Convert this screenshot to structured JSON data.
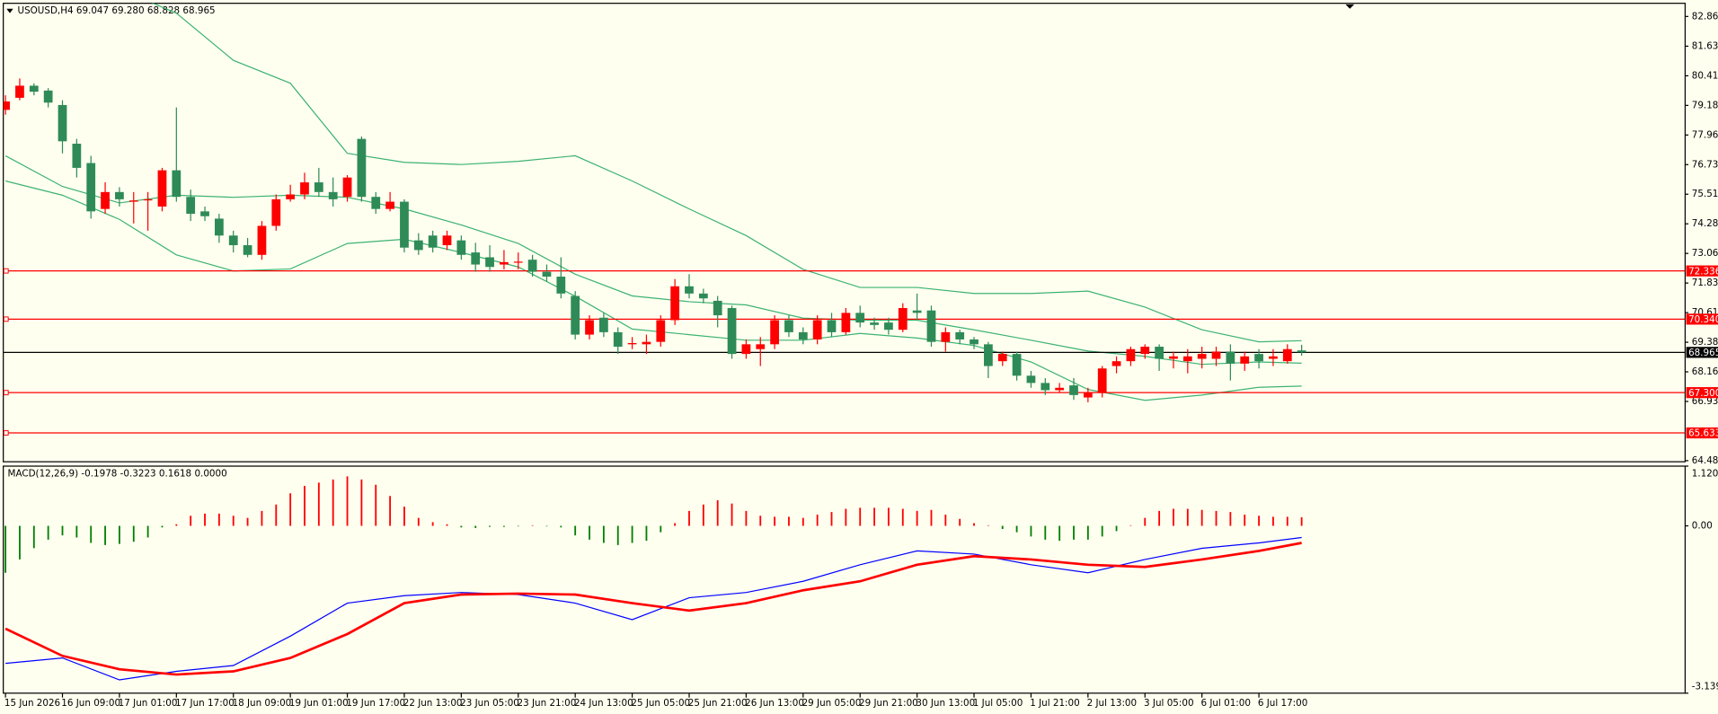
{
  "chart_data": [
    {
      "type": "candlestick",
      "title": "USOUSD,H4  69.047 69.280 68.828 68.965",
      "up_color": "#ff0000",
      "down_color": "#2e8b57",
      "open": [
        79.0,
        79.5,
        80.0,
        79.8,
        79.2,
        77.6,
        76.8,
        74.9,
        75.6,
        75.2,
        75.3,
        75.0,
        76.5,
        75.4,
        74.8,
        74.5,
        73.8,
        73.4,
        73.0,
        74.2,
        75.3,
        75.5,
        76.0,
        75.6,
        75.4,
        77.8,
        75.4,
        74.9,
        75.2,
        73.6,
        73.8,
        73.4,
        73.6,
        73.1,
        72.9,
        72.6,
        72.7,
        72.8,
        72.3,
        72.1,
        71.3,
        69.7,
        70.4,
        69.8,
        69.3,
        69.3,
        69.4,
        70.3,
        71.7,
        71.4,
        71.1,
        70.8,
        68.9,
        69.1,
        69.3,
        70.3,
        69.8,
        69.5,
        70.3,
        69.8,
        70.6,
        70.2,
        70.2,
        69.9,
        70.7,
        70.7,
        69.4,
        69.8,
        69.5,
        69.3,
        68.6,
        68.9,
        68.0,
        67.7,
        67.4,
        67.6,
        67.1,
        67.3,
        68.4,
        68.6,
        68.9,
        69.2,
        68.7,
        68.6,
        68.7,
        68.7,
        69.0,
        68.5,
        68.9,
        68.7,
        68.6,
        69.047
      ],
      "high": [
        79.6,
        80.3,
        80.1,
        79.9,
        79.4,
        77.8,
        77.1,
        76.0,
        75.8,
        75.6,
        75.6,
        76.6,
        79.1,
        75.7,
        75.0,
        74.7,
        74.0,
        73.7,
        74.4,
        75.5,
        75.9,
        76.4,
        76.6,
        76.2,
        76.3,
        77.9,
        75.6,
        75.6,
        75.3,
        73.9,
        74.0,
        74.0,
        73.8,
        73.5,
        73.4,
        73.2,
        73.1,
        73.0,
        72.6,
        72.9,
        71.5,
        70.5,
        70.6,
        70.0,
        69.6,
        69.7,
        70.5,
        72.0,
        72.2,
        71.6,
        71.3,
        70.9,
        69.5,
        69.6,
        70.5,
        70.5,
        70.0,
        70.5,
        70.6,
        70.8,
        70.9,
        70.4,
        70.4,
        71.0,
        71.4,
        70.9,
        70.0,
        69.9,
        69.6,
        69.4,
        69.0,
        69.0,
        68.2,
        67.9,
        67.7,
        67.9,
        67.5,
        68.4,
        68.8,
        69.2,
        69.3,
        69.3,
        69.0,
        69.1,
        69.2,
        69.2,
        69.3,
        69.0,
        69.1,
        69.1,
        69.3,
        69.28
      ],
      "low": [
        78.8,
        79.4,
        79.6,
        79.1,
        77.2,
        76.2,
        74.5,
        74.7,
        75.0,
        74.3,
        74.0,
        74.8,
        75.2,
        74.4,
        74.4,
        73.5,
        73.1,
        72.9,
        72.8,
        74.0,
        75.2,
        75.3,
        75.4,
        75.0,
        75.2,
        75.2,
        74.7,
        74.8,
        73.1,
        73.0,
        73.1,
        73.2,
        72.8,
        72.3,
        72.3,
        72.4,
        72.4,
        72.1,
        71.9,
        71.2,
        69.5,
        69.5,
        69.6,
        68.9,
        69.1,
        68.9,
        69.2,
        70.1,
        71.2,
        71.0,
        70.0,
        68.7,
        68.7,
        68.4,
        69.1,
        69.6,
        69.3,
        69.3,
        69.6,
        69.7,
        70.0,
        69.9,
        69.7,
        69.8,
        70.3,
        69.2,
        69.0,
        69.3,
        69.1,
        67.9,
        68.4,
        67.8,
        67.5,
        67.2,
        67.3,
        67.0,
        66.9,
        67.1,
        68.1,
        68.4,
        68.7,
        68.2,
        68.3,
        68.1,
        68.3,
        68.4,
        67.8,
        68.2,
        68.3,
        68.4,
        68.5,
        68.828
      ],
      "close": [
        79.35,
        80.0,
        79.75,
        79.3,
        77.7,
        76.6,
        74.8,
        75.6,
        75.3,
        75.25,
        75.3,
        76.5,
        75.4,
        74.7,
        74.6,
        73.8,
        73.4,
        73.0,
        74.2,
        75.3,
        75.5,
        76.0,
        75.6,
        75.3,
        76.2,
        75.4,
        74.9,
        75.2,
        73.3,
        73.2,
        73.3,
        73.8,
        73.0,
        72.6,
        72.5,
        72.7,
        72.72,
        72.3,
        72.1,
        71.4,
        69.7,
        70.3,
        69.8,
        69.2,
        69.35,
        69.4,
        70.3,
        71.7,
        71.4,
        71.2,
        70.5,
        68.9,
        69.3,
        69.3,
        70.3,
        69.8,
        69.5,
        70.3,
        69.8,
        70.6,
        70.2,
        70.1,
        69.9,
        70.8,
        70.6,
        69.4,
        69.8,
        69.5,
        69.3,
        68.4,
        68.9,
        68.0,
        67.7,
        67.4,
        67.5,
        67.2,
        67.3,
        68.3,
        68.6,
        69.1,
        69.2,
        68.7,
        68.8,
        68.8,
        68.9,
        69.0,
        68.5,
        68.8,
        68.6,
        68.8,
        69.1,
        68.965
      ],
      "bands": {
        "x": [
          0,
          4,
          8,
          12,
          16,
          20,
          24,
          28,
          32,
          36,
          40,
          44,
          48,
          52,
          56,
          60,
          64,
          68,
          72,
          76,
          80,
          84,
          88,
          91
        ],
        "series": [
          {
            "color": "#3cb371",
            "values": [
              86.5,
              85.0,
              84.0,
              83.0,
              81.05,
              80.1,
              77.2,
              76.83,
              76.74,
              76.87,
              77.1,
              76.06,
              74.9,
              73.8,
              72.4,
              71.65,
              71.65,
              71.4,
              71.4,
              71.5,
              70.84,
              69.9,
              69.4,
              69.45
            ]
          },
          {
            "color": "#3cb371",
            "values": [
              77.1,
              75.83,
              75.15,
              75.47,
              75.38,
              75.47,
              75.38,
              74.9,
              74.24,
              73.47,
              72.2,
              71.3,
              71.06,
              70.93,
              70.38,
              70.3,
              70.3,
              69.9,
              69.47,
              69.02,
              68.8,
              68.47,
              68.57,
              68.52
            ]
          },
          {
            "color": "#3cb371",
            "values": [
              76.06,
              75.47,
              74.47,
              73.0,
              72.33,
              72.42,
              73.47,
              73.65,
              73.1,
              72.5,
              71.29,
              69.93,
              69.7,
              69.47,
              69.47,
              69.75,
              69.56,
              69.25,
              68.57,
              67.43,
              66.98,
              67.2,
              67.52,
              67.57
            ]
          }
        ]
      },
      "levels": [
        {
          "value": 72.336,
          "color": "#ff0000"
        },
        {
          "value": {
            "value": 70.34,
            "label": "70.340"
          },
          "color": "#ff0000"
        },
        {
          "value": 68.965,
          "color": "#000000"
        },
        {
          "value": {
            "value": 67.3,
            "label": "67.300"
          },
          "color": "#ff0000"
        },
        {
          "value": 65.633,
          "color": "#ff0000"
        }
      ],
      "ylim": [
        64.44,
        83.41
      ],
      "yticks": [
        82.865,
        81.635,
        {
          "value": 80.41,
          "label": "80.410"
        },
        79.185,
        {
          "value": 77.96,
          "label": "77.960"
        },
        76.735,
        {
          "value": 75.51,
          "label": "75.510"
        },
        74.285,
        {
          "value": 73.06,
          "label": "73.060"
        },
        71.835,
        {
          "value": 70.61,
          "label": "70.610"
        },
        69.385,
        {
          "value": 68.16,
          "label": "68.160"
        },
        66.935,
        64.485
      ],
      "xticks": [
        {
          "value": 0,
          "label": "15 Jun 2026"
        },
        {
          "value": 4,
          "label": "16 Jun 09:00"
        },
        {
          "value": 8,
          "label": "17 Jun 01:00"
        },
        {
          "value": 12,
          "label": "17 Jun 17:00"
        },
        {
          "value": 16,
          "label": "18 Jun 09:00"
        },
        {
          "value": 20,
          "label": "19 Jun 01:00"
        },
        {
          "value": 24,
          "label": "19 Jun 17:00"
        },
        {
          "value": 28,
          "label": "22 Jun 13:00"
        },
        {
          "value": 32,
          "label": "23 Jun 05:00"
        },
        {
          "value": 36,
          "label": "23 Jun 21:00"
        },
        {
          "value": 40,
          "label": "24 Jun 13:00"
        },
        {
          "value": 44,
          "label": "25 Jun 05:00"
        },
        {
          "value": 48,
          "label": "25 Jun 21:00"
        },
        {
          "value": 52,
          "label": "26 Jun 13:00"
        },
        {
          "value": 56,
          "label": "29 Jun 05:00"
        },
        {
          "value": 60,
          "label": "29 Jun 21:00"
        },
        {
          "value": 64,
          "label": "30 Jun 13:00"
        },
        {
          "value": 68,
          "label": "1 Jul 05:00"
        },
        {
          "value": 72,
          "label": "1 Jul 21:00"
        },
        {
          "value": 76,
          "label": "2 Jul 13:00"
        },
        {
          "value": 80,
          "label": "3 Jul 05:00"
        },
        {
          "value": 84,
          "label": "6 Jul 01:00"
        },
        {
          "value": 88,
          "label": "6 Jul 17:00"
        }
      ]
    },
    {
      "type": "macd",
      "title": "MACD(12,26,9) -0.1978 -0.3223 0.1618 0.0000",
      "up_color": "#ff0000",
      "down_color": "#008000",
      "histogram": [
        -0.88,
        -0.63,
        -0.42,
        -0.26,
        -0.18,
        -0.22,
        -0.32,
        -0.36,
        -0.34,
        -0.3,
        -0.22,
        -0.03,
        0.03,
        0.19,
        0.23,
        0.23,
        0.19,
        0.15,
        0.28,
        0.4,
        0.61,
        0.75,
        0.81,
        0.87,
        0.93,
        0.87,
        0.77,
        0.56,
        0.36,
        0.15,
        0.07,
        0.03,
        -0.03,
        -0.04,
        -0.02,
        -0.02,
        -0.01,
        0.01,
        -0.01,
        -0.03,
        -0.18,
        -0.26,
        -0.32,
        -0.36,
        -0.32,
        -0.28,
        -0.12,
        0.05,
        0.28,
        0.4,
        0.48,
        0.42,
        0.28,
        0.19,
        0.17,
        0.17,
        0.15,
        0.21,
        0.26,
        0.32,
        0.34,
        0.34,
        0.34,
        0.32,
        0.28,
        0.3,
        0.21,
        0.13,
        0.05,
        0.01,
        -0.06,
        -0.12,
        -0.2,
        -0.26,
        -0.28,
        -0.26,
        -0.26,
        -0.2,
        -0.1,
        0.01,
        0.15,
        0.28,
        0.32,
        0.32,
        0.3,
        0.28,
        0.26,
        0.21,
        0.19,
        0.17,
        0.17,
        0.1618
      ],
      "lines": {
        "x": [
          0,
          4,
          8,
          12,
          16,
          20,
          24,
          28,
          32,
          36,
          40,
          44,
          48,
          52,
          56,
          60,
          64,
          68,
          72,
          76,
          80,
          84,
          88,
          91
        ],
        "series": [
          {
            "color": "#0000ff",
            "values": [
              -2.58,
              -2.48,
              -2.89,
              -2.73,
              -2.62,
              -2.07,
              -1.45,
              -1.31,
              -1.25,
              -1.29,
              -1.45,
              -1.76,
              -1.35,
              -1.25,
              -1.04,
              -0.73,
              -0.47,
              -0.53,
              -0.73,
              -0.88,
              -0.63,
              -0.42,
              -0.32,
              -0.22
            ]
          },
          {
            "color": "#ff0000",
            "values": [
              -1.93,
              -2.44,
              -2.69,
              -2.79,
              -2.73,
              -2.48,
              -2.03,
              -1.45,
              -1.29,
              -1.27,
              -1.29,
              -1.45,
              -1.59,
              -1.45,
              -1.21,
              -1.04,
              -0.73,
              -0.57,
              -0.63,
              -0.73,
              -0.77,
              -0.63,
              -0.47,
              -0.32
            ]
          }
        ]
      },
      "ylim": [
        -3.1396,
        1.1205
      ],
      "yticks": [
        1.1205,
        {
          "value": 0,
          "label": "0.00"
        },
        -3.1396
      ]
    }
  ]
}
